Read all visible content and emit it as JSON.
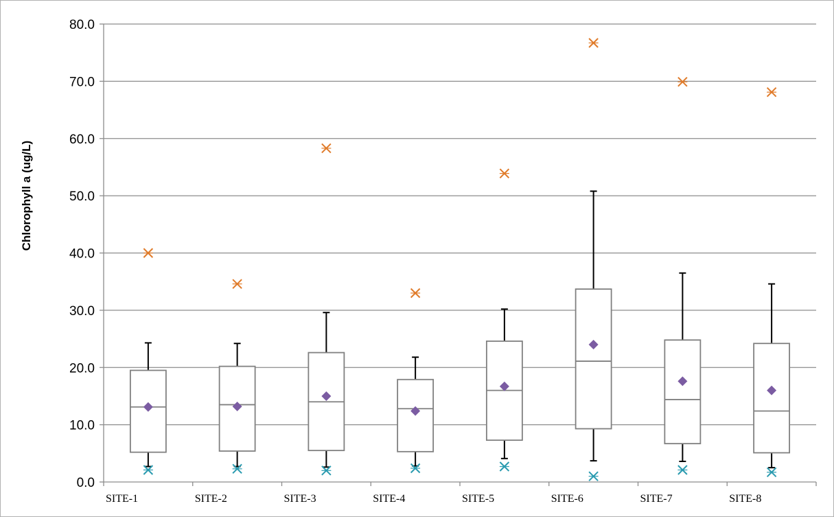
{
  "chart_data": {
    "type": "boxplot",
    "title": "",
    "xlabel": "",
    "ylabel": "Chlorophyll a (ug/L)",
    "ylim": [
      0,
      80
    ],
    "yticks": [
      "0.0",
      "10.0",
      "20.0",
      "30.0",
      "40.0",
      "50.0",
      "60.0",
      "70.0",
      "80.0"
    ],
    "grid": "horizontal",
    "categories": [
      "SITE-1",
      "SITE-2",
      "SITE-3",
      "SITE-4",
      "SITE-5",
      "SITE-6",
      "SITE-7",
      "SITE-8"
    ],
    "boxes": [
      {
        "whisker_low": 2.7,
        "q1": 5.2,
        "median": 13.1,
        "q3": 19.5,
        "whisker_high": 24.3,
        "mean": 13.1,
        "max": 40.0,
        "min": 2.1
      },
      {
        "whisker_low": 2.7,
        "q1": 5.4,
        "median": 13.5,
        "q3": 20.2,
        "whisker_high": 24.2,
        "mean": 13.2,
        "max": 34.6,
        "min": 2.3
      },
      {
        "whisker_low": 2.6,
        "q1": 5.5,
        "median": 14.0,
        "q3": 22.6,
        "whisker_high": 29.6,
        "mean": 15.0,
        "max": 58.3,
        "min": 2.0
      },
      {
        "whisker_low": 2.8,
        "q1": 5.3,
        "median": 12.8,
        "q3": 17.9,
        "whisker_high": 21.8,
        "mean": 12.4,
        "max": 33.0,
        "min": 2.4
      },
      {
        "whisker_low": 4.1,
        "q1": 7.3,
        "median": 16.0,
        "q3": 24.6,
        "whisker_high": 30.2,
        "mean": 16.7,
        "max": 53.9,
        "min": 2.7
      },
      {
        "whisker_low": 3.7,
        "q1": 9.3,
        "median": 21.1,
        "q3": 33.7,
        "whisker_high": 50.8,
        "mean": 24.0,
        "max": 76.7,
        "min": 1.0
      },
      {
        "whisker_low": 3.6,
        "q1": 6.7,
        "median": 14.4,
        "q3": 24.8,
        "whisker_high": 36.5,
        "mean": 17.6,
        "max": 69.9,
        "min": 2.1
      },
      {
        "whisker_low": 2.5,
        "q1": 5.1,
        "median": 12.4,
        "q3": 24.2,
        "whisker_high": 34.6,
        "mean": 16.0,
        "max": 68.1,
        "min": 1.7
      }
    ],
    "colors": {
      "box_stroke": "#808080",
      "whisker": "#000000",
      "mean": "#7B5CA2",
      "max": "#E07B2A",
      "min": "#2B9BB0",
      "grid": "#8c8c8c"
    }
  }
}
